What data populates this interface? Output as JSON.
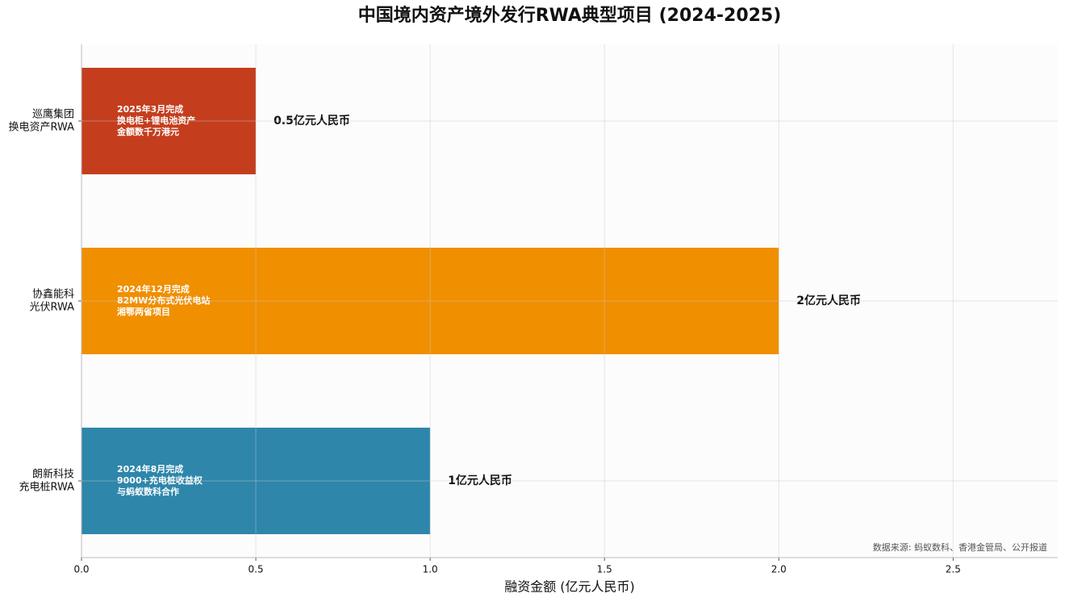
{
  "chart_data": {
    "type": "barh",
    "title": "中国境内资产境外发行RWA典型项目 (2024-2025)",
    "xlabel": "融资金额 (亿元人民币)",
    "source": "数据来源: 蚂蚁数科、香港金管局、公开报道",
    "categories": [
      [
        "巡鹰集团",
        "换电资产RWA"
      ],
      [
        "协鑫能科",
        "光伏RWA"
      ],
      [
        "朗新科技",
        "充电桩RWA"
      ]
    ],
    "values": [
      0.5,
      2,
      1
    ],
    "value_labels": [
      "0.5亿元人民币",
      "2亿元人民币",
      "1亿元人民币"
    ],
    "annotations": [
      [
        "2025年3月完成",
        "换电柜+锂电池资产",
        "金额数千万港元"
      ],
      [
        "2024年12月完成",
        "82MW分布式光伏电站",
        "湘鄂两省项目"
      ],
      [
        "2024年8月完成",
        "9000+充电桩收益权",
        "与蚂蚁数科合作"
      ]
    ],
    "colors": [
      "#c43e1e",
      "#f08f00",
      "#2e86ab"
    ],
    "xlim": [
      0,
      2.8
    ],
    "xticks": [
      {
        "value": 0,
        "label": "0.0"
      },
      0.5,
      {
        "value": 1,
        "label": "1.0"
      },
      1.5,
      {
        "value": 2,
        "label": "2.0"
      },
      2.5
    ],
    "grid": true
  }
}
